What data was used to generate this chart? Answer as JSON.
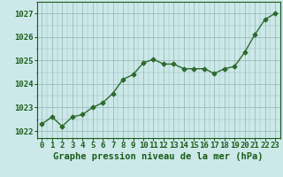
{
  "x": [
    0,
    1,
    2,
    3,
    4,
    5,
    6,
    7,
    8,
    9,
    10,
    11,
    12,
    13,
    14,
    15,
    16,
    17,
    18,
    19,
    20,
    21,
    22,
    23
  ],
  "y": [
    1022.3,
    1022.6,
    1022.2,
    1022.6,
    1022.7,
    1023.0,
    1023.2,
    1023.6,
    1024.2,
    1024.4,
    1024.9,
    1025.05,
    1024.85,
    1024.85,
    1024.65,
    1024.65,
    1024.65,
    1024.45,
    1024.65,
    1024.75,
    1025.35,
    1026.1,
    1026.75,
    1027.0
  ],
  "line_color": "#2d6a2d",
  "marker": "D",
  "marker_size": 2.5,
  "line_width": 1.0,
  "bg_color": "#cce8e8",
  "grid_color": "#99bbbb",
  "xlabel": "Graphe pression niveau de la mer (hPa)",
  "xlabel_fontsize": 7.5,
  "xlabel_color": "#1a5c1a",
  "ytick_labels": [
    1022,
    1023,
    1024,
    1025,
    1026,
    1027
  ],
  "ylim": [
    1021.7,
    1027.5
  ],
  "xlim": [
    -0.5,
    23.5
  ],
  "tick_color": "#1a5c1a",
  "tick_fontsize": 6.5,
  "spine_color": "#1a5c1a"
}
